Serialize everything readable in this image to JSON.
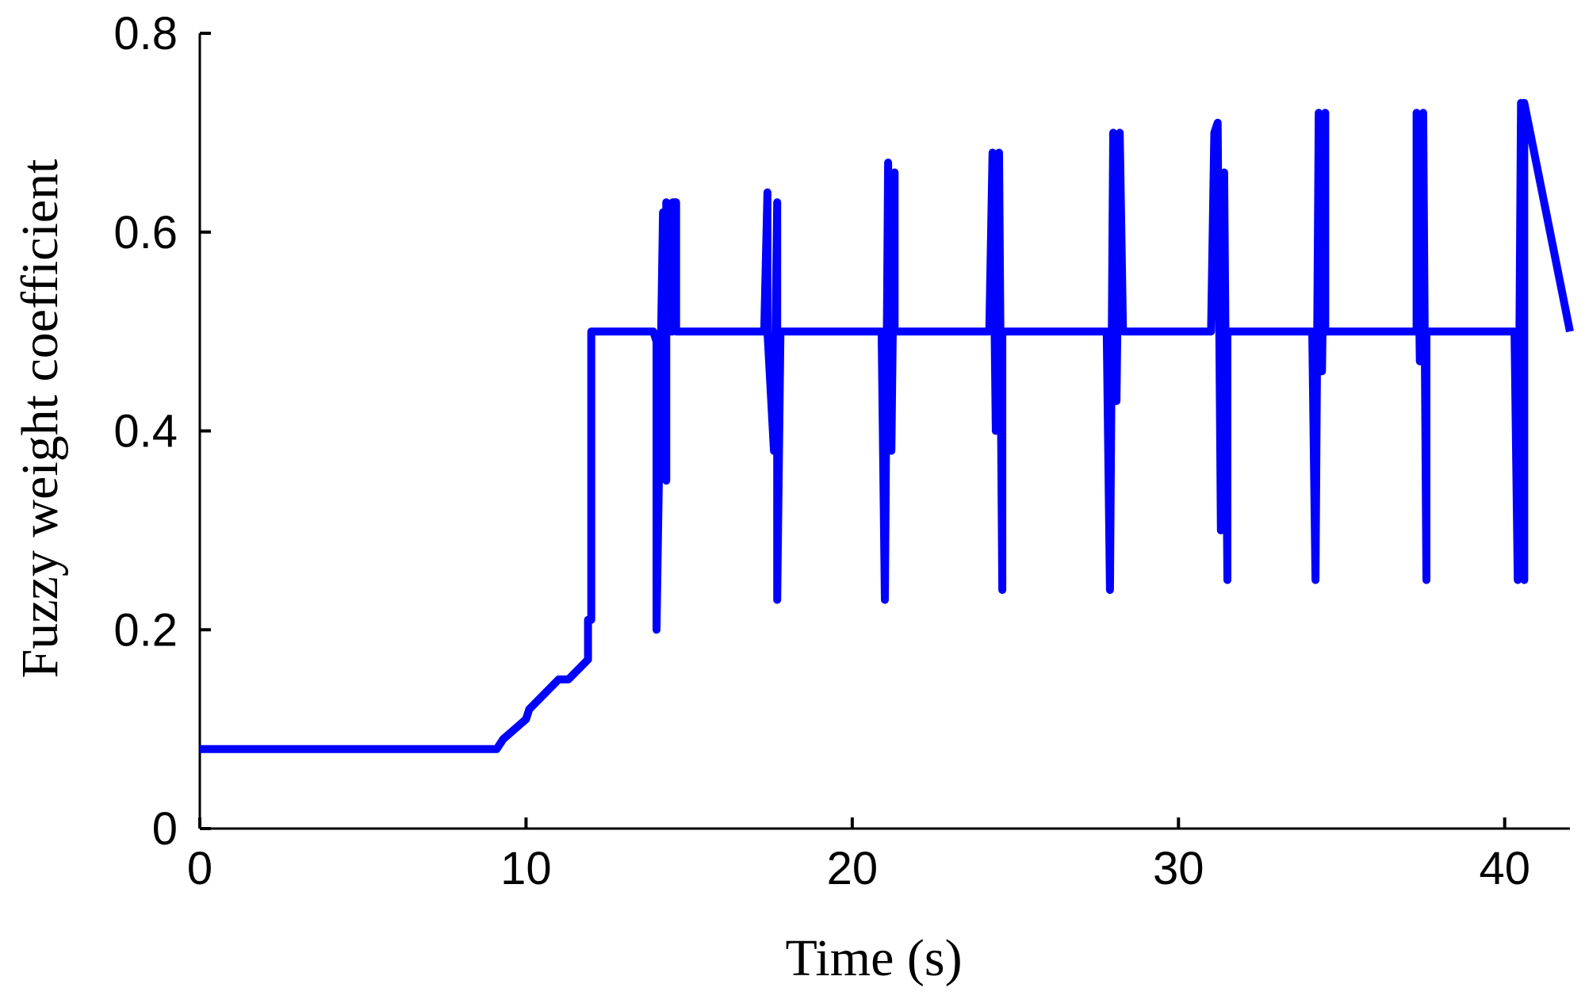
{
  "chart_data": {
    "type": "line",
    "title": "",
    "xlabel": "Time (s)",
    "ylabel": "Fuzzy weight coefficient",
    "xlim": [
      0,
      42
    ],
    "ylim": [
      0,
      0.8
    ],
    "xticks": [
      0,
      10,
      20,
      30,
      40
    ],
    "yticks": [
      0,
      0.2,
      0.4,
      0.6,
      0.8
    ],
    "xtick_labels": [
      "0",
      "10",
      "20",
      "30",
      "40"
    ],
    "ytick_labels": [
      "0",
      "0.2",
      "0.4",
      "0.6",
      "0.8"
    ],
    "grid": false,
    "legend": "none",
    "line_color": "#0000ff",
    "series": [
      {
        "x": [
          0,
          9.1,
          9.3,
          10.0,
          10.1,
          11.0,
          11.3,
          11.9,
          11.9,
          12.0,
          12.0,
          12.1,
          12.1,
          13.9,
          14.0,
          14.0,
          14.2,
          14.3,
          14.3,
          14.4,
          14.5,
          14.5,
          14.6,
          14.6,
          17.3,
          17.4,
          17.4,
          17.6,
          17.7,
          17.7,
          17.8,
          17.8,
          20.9,
          21.0,
          21.1,
          21.2,
          21.3,
          21.3,
          24.2,
          24.3,
          24.4,
          24.5,
          24.6,
          24.6,
          27.8,
          27.9,
          28.0,
          28.1,
          28.2,
          28.3,
          28.3,
          31.0,
          31.1,
          31.2,
          31.3,
          31.4,
          31.5,
          31.5,
          34.1,
          34.2,
          34.3,
          34.4,
          34.5,
          34.5,
          37.3,
          37.3,
          37.4,
          37.5,
          37.6,
          37.6,
          40.3,
          40.4,
          40.5,
          40.6,
          40.6,
          42
        ],
        "y": [
          0.08,
          0.08,
          0.09,
          0.11,
          0.12,
          0.15,
          0.15,
          0.17,
          0.21,
          0.21,
          0.5,
          0.5,
          0.5,
          0.5,
          0.49,
          0.2,
          0.62,
          0.35,
          0.63,
          0.5,
          0.5,
          0.63,
          0.63,
          0.5,
          0.5,
          0.64,
          0.5,
          0.38,
          0.63,
          0.23,
          0.5,
          0.5,
          0.5,
          0.23,
          0.67,
          0.38,
          0.66,
          0.5,
          0.5,
          0.68,
          0.4,
          0.68,
          0.24,
          0.5,
          0.5,
          0.24,
          0.7,
          0.43,
          0.7,
          0.5,
          0.5,
          0.5,
          0.7,
          0.71,
          0.3,
          0.66,
          0.25,
          0.5,
          0.5,
          0.25,
          0.72,
          0.46,
          0.72,
          0.5,
          0.5,
          0.72,
          0.47,
          0.72,
          0.25,
          0.5,
          0.5,
          0.25,
          0.73,
          0.25,
          0.73,
          0.5
        ]
      }
    ]
  }
}
